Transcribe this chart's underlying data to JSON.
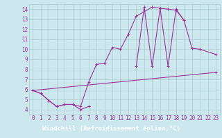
{
  "xlabel": "Windchill (Refroidissement éolien,°C)",
  "background_color": "#cce8ee",
  "grid_color": "#aacccc",
  "line_color": "#993399",
  "xlabel_bg": "#330044",
  "xlim": [
    -0.5,
    23.5
  ],
  "ylim": [
    3.5,
    14.5
  ],
  "xticks": [
    0,
    1,
    2,
    3,
    4,
    5,
    6,
    7,
    8,
    9,
    10,
    11,
    12,
    13,
    14,
    15,
    16,
    17,
    18,
    19,
    20,
    21,
    22,
    23
  ],
  "yticks": [
    4,
    5,
    6,
    7,
    8,
    9,
    10,
    11,
    12,
    13,
    14
  ],
  "series1_x": [
    0,
    1,
    2,
    3,
    4,
    5,
    6,
    7,
    8,
    9,
    10,
    11,
    12,
    13,
    15,
    16,
    17,
    18,
    19,
    20,
    21,
    23
  ],
  "series1_y": [
    5.9,
    5.6,
    4.9,
    4.3,
    4.5,
    4.5,
    4.3,
    6.7,
    8.5,
    8.6,
    10.2,
    10.0,
    11.5,
    13.3,
    14.2,
    14.1,
    14.0,
    13.9,
    12.9,
    10.1,
    10.0,
    9.5
  ],
  "series2_x": [
    0,
    1,
    2,
    3,
    4,
    5,
    6,
    7,
    13,
    14,
    15,
    16,
    17,
    18,
    19,
    23
  ],
  "series2_y": [
    5.9,
    5.6,
    4.9,
    4.3,
    4.5,
    4.5,
    4.0,
    4.3,
    8.3,
    14.2,
    8.3,
    14.1,
    8.3,
    14.0,
    12.9,
    7.7
  ],
  "series3_x": [
    0,
    23
  ],
  "series3_y": [
    5.9,
    7.7
  ],
  "tick_fontsize": 5.5,
  "label_fontsize": 6.5
}
